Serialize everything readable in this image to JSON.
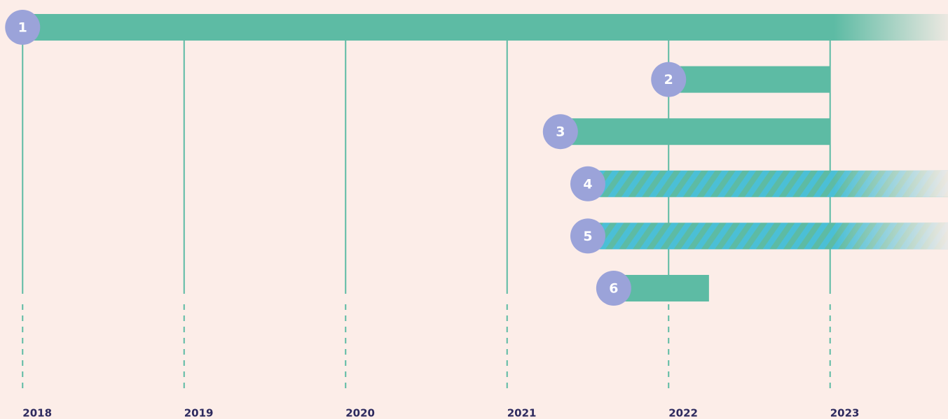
{
  "chart_data": {
    "type": "timeline",
    "xlim": [
      2017.86,
      2023.73
    ],
    "xticks": [
      2018,
      2019,
      2020,
      2021,
      2022,
      2023
    ],
    "grid": true,
    "bars": [
      {
        "label": "1",
        "start": 2018,
        "end": 2023.73,
        "color": "#5dbba4",
        "striped": false,
        "fade": true
      },
      {
        "label": "2",
        "start": 2022,
        "end": 2023,
        "color": "#5dbba4",
        "striped": false,
        "fade": false
      },
      {
        "label": "3",
        "start": 2021.33,
        "end": 2023,
        "color": "#5dbba4",
        "striped": false,
        "fade": false
      },
      {
        "label": "4",
        "start": 2021.5,
        "end": 2023.73,
        "color": "#5dbba4",
        "striped": true,
        "fade": true
      },
      {
        "label": "5",
        "start": 2021.5,
        "end": 2023.73,
        "color": "#5dbba4",
        "striped": true,
        "fade": true
      },
      {
        "label": "6",
        "start": 2021.66,
        "end": 2022.25,
        "color": "#5dbba4",
        "striped": false,
        "fade": false
      }
    ]
  }
}
